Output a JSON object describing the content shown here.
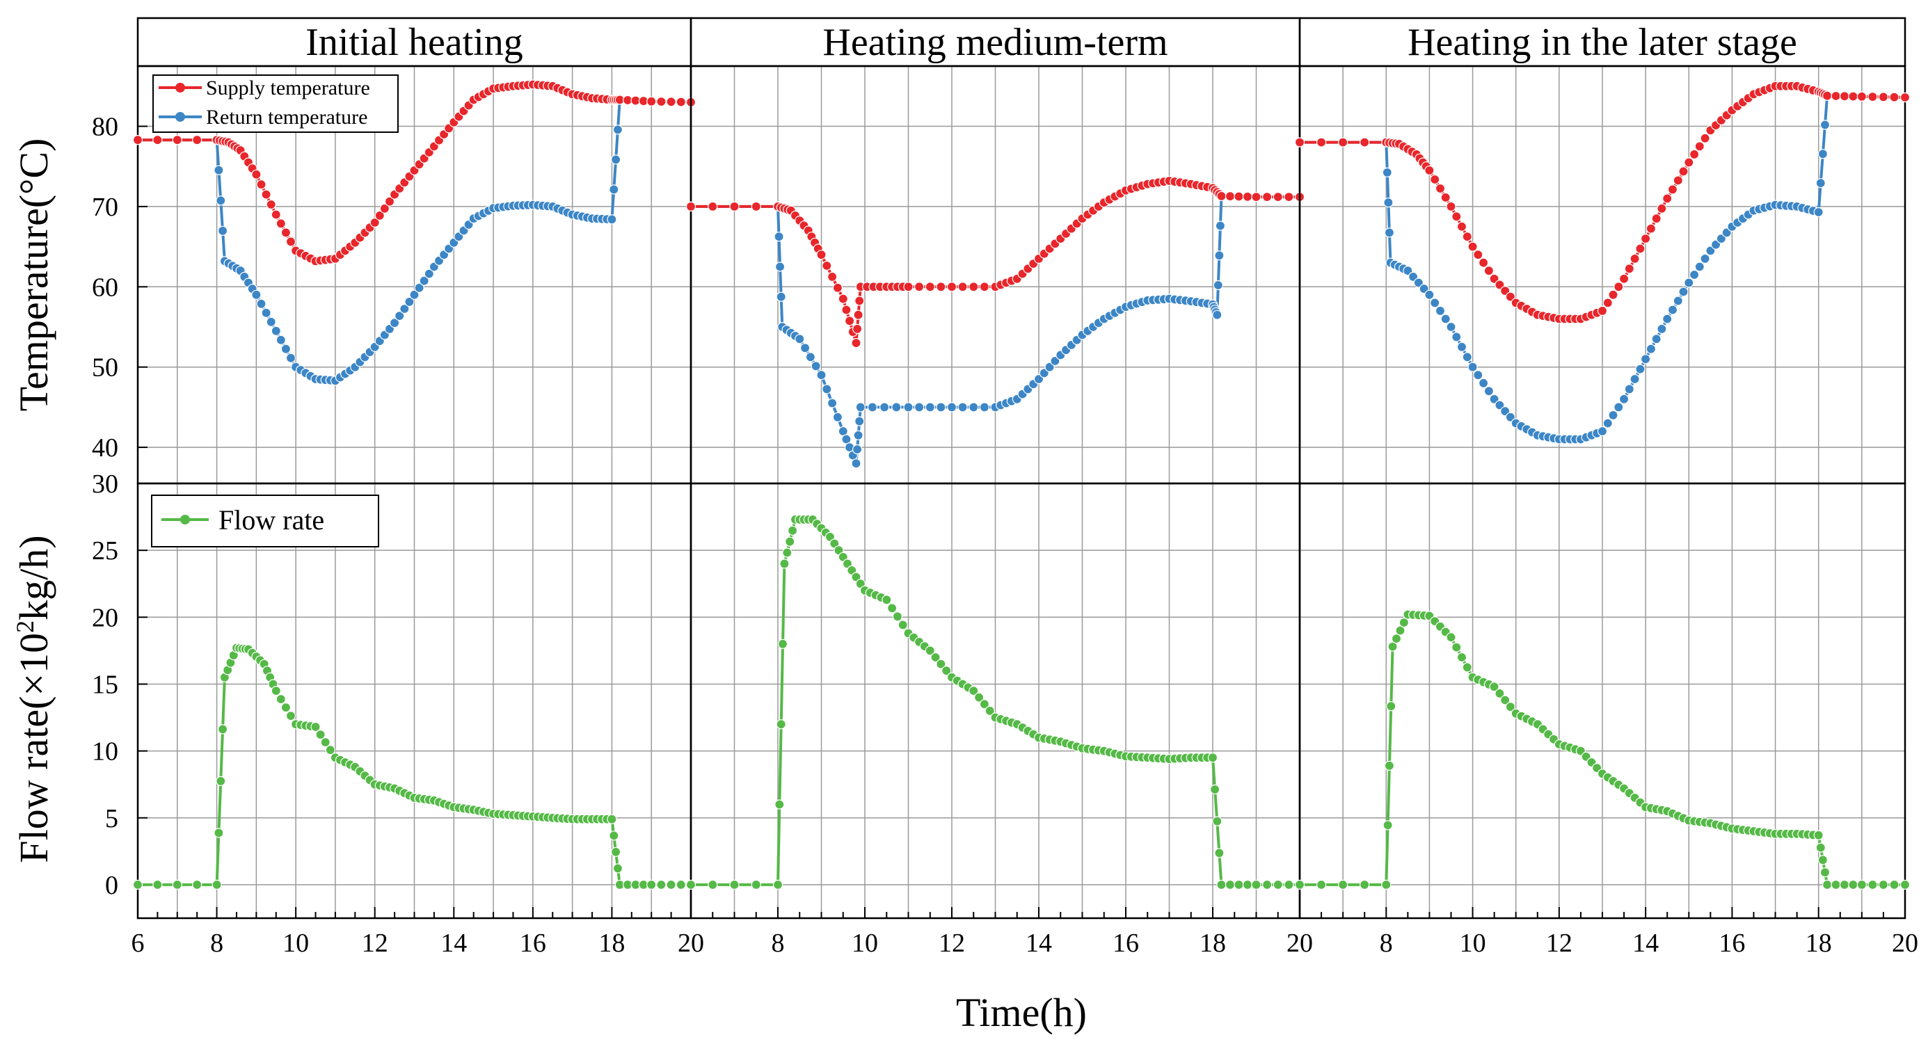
{
  "chart_data": {
    "type": "line",
    "xlabel": "Time(h)",
    "ylabel_top": "Temperature(°C)",
    "ylabel_bottom_prefix": "Flow rate(×10",
    "ylabel_bottom_sup": "2",
    "ylabel_bottom_suffix": "kg/h)",
    "xlim": [
      6,
      20
    ],
    "x_ticks": [
      6,
      8,
      10,
      12,
      14,
      16,
      18,
      20
    ],
    "temp_ylim": [
      35.5,
      87.5
    ],
    "temp_ticks": [
      40,
      50,
      60,
      70,
      80
    ],
    "flow_ylim": [
      -2.5,
      30
    ],
    "flow_ticks": [
      0,
      5,
      10,
      15,
      20,
      25,
      30
    ],
    "legend": {
      "supply": "Supply temperature",
      "return": "Return temperature",
      "flow": "Flow rate"
    },
    "colors": {
      "supply": "#e8262b",
      "return": "#3c86c6",
      "flow": "#55b947"
    },
    "panels": [
      {
        "title": "Initial heating",
        "supply": [
          [
            6,
            78.3
          ],
          [
            8,
            78.3
          ],
          [
            8.3,
            78
          ],
          [
            8.6,
            77
          ],
          [
            9,
            74
          ],
          [
            9.5,
            69
          ],
          [
            10,
            64.5
          ],
          [
            10.5,
            63.2
          ],
          [
            11,
            63.5
          ],
          [
            11.5,
            65.5
          ],
          [
            12,
            68
          ],
          [
            12.5,
            71.5
          ],
          [
            13,
            74.5
          ],
          [
            13.5,
            77.5
          ],
          [
            14,
            80.5
          ],
          [
            14.5,
            83.3
          ],
          [
            15,
            84.7
          ],
          [
            15.5,
            85
          ],
          [
            16,
            85.2
          ],
          [
            16.5,
            85
          ],
          [
            17,
            84
          ],
          [
            17.5,
            83.5
          ],
          [
            18,
            83.3
          ],
          [
            18.2,
            83.3
          ],
          [
            19,
            83.1
          ],
          [
            20,
            83
          ]
        ],
        "return": [
          [
            6,
            78.3
          ],
          [
            8,
            78.3
          ],
          [
            8.2,
            63.2
          ],
          [
            8.6,
            62
          ],
          [
            9,
            59
          ],
          [
            9.5,
            54.5
          ],
          [
            10,
            50
          ],
          [
            10.5,
            48.5
          ],
          [
            11,
            48.3
          ],
          [
            11.5,
            50
          ],
          [
            12,
            52.5
          ],
          [
            12.5,
            55.5
          ],
          [
            13,
            59
          ],
          [
            13.5,
            62.5
          ],
          [
            14,
            65.5
          ],
          [
            14.5,
            68.5
          ],
          [
            15,
            69.8
          ],
          [
            15.5,
            70.1
          ],
          [
            16,
            70.2
          ],
          [
            16.5,
            70
          ],
          [
            17,
            69
          ],
          [
            17.5,
            68.5
          ],
          [
            18,
            68.4
          ],
          [
            18.2,
            83.3
          ],
          [
            19,
            83.1
          ],
          [
            20,
            83
          ]
        ],
        "flow": [
          [
            6,
            0
          ],
          [
            8,
            0
          ],
          [
            8.2,
            15.5
          ],
          [
            8.5,
            17.7
          ],
          [
            8.8,
            17.6
          ],
          [
            9.2,
            16.5
          ],
          [
            9.5,
            14.5
          ],
          [
            10,
            12
          ],
          [
            10.5,
            11.8
          ],
          [
            11,
            9.5
          ],
          [
            11.5,
            8.8
          ],
          [
            12,
            7.5
          ],
          [
            12.5,
            7.2
          ],
          [
            13,
            6.5
          ],
          [
            13.5,
            6.3
          ],
          [
            14,
            5.8
          ],
          [
            14.5,
            5.6
          ],
          [
            15,
            5.3
          ],
          [
            15.5,
            5.2
          ],
          [
            16,
            5.1
          ],
          [
            16.5,
            5
          ],
          [
            17,
            4.9
          ],
          [
            17.5,
            4.9
          ],
          [
            18,
            4.9
          ],
          [
            18.2,
            0
          ],
          [
            19,
            0
          ],
          [
            20,
            0
          ]
        ]
      },
      {
        "title": "Heating medium-term",
        "supply": [
          [
            6,
            70
          ],
          [
            8,
            70
          ],
          [
            8.3,
            69.5
          ],
          [
            8.7,
            67
          ],
          [
            9,
            64
          ],
          [
            9.5,
            58.5
          ],
          [
            9.8,
            53
          ],
          [
            9.9,
            60
          ],
          [
            10.5,
            60
          ],
          [
            11,
            60
          ],
          [
            12,
            60
          ],
          [
            13,
            60
          ],
          [
            13.5,
            61
          ],
          [
            14,
            63.5
          ],
          [
            14.5,
            66
          ],
          [
            15,
            68.5
          ],
          [
            15.5,
            70.5
          ],
          [
            16,
            72
          ],
          [
            16.5,
            72.8
          ],
          [
            17,
            73.2
          ],
          [
            17.5,
            72.8
          ],
          [
            18,
            72.3
          ],
          [
            18.2,
            71.3
          ],
          [
            19,
            71.2
          ],
          [
            20,
            71.2
          ]
        ],
        "return": [
          [
            6,
            70
          ],
          [
            8,
            70
          ],
          [
            8.1,
            55
          ],
          [
            8.5,
            53.5
          ],
          [
            9,
            49
          ],
          [
            9.5,
            42
          ],
          [
            9.8,
            38
          ],
          [
            9.9,
            45
          ],
          [
            11,
            45
          ],
          [
            12,
            45
          ],
          [
            13,
            45
          ],
          [
            13.5,
            46
          ],
          [
            14,
            48.5
          ],
          [
            14.5,
            51.5
          ],
          [
            15,
            54
          ],
          [
            15.5,
            56
          ],
          [
            16,
            57.5
          ],
          [
            16.5,
            58.3
          ],
          [
            17,
            58.5
          ],
          [
            17.5,
            58.2
          ],
          [
            18,
            57.8
          ],
          [
            18.1,
            56.5
          ],
          [
            18.2,
            71.3
          ],
          [
            19,
            71.2
          ],
          [
            20,
            71.2
          ]
        ],
        "flow": [
          [
            6,
            0
          ],
          [
            8,
            0
          ],
          [
            8.15,
            24
          ],
          [
            8.4,
            27.3
          ],
          [
            8.8,
            27.3
          ],
          [
            9.2,
            26
          ],
          [
            9.6,
            24
          ],
          [
            10,
            22
          ],
          [
            10.5,
            21.3
          ],
          [
            11,
            18.8
          ],
          [
            11.5,
            17.5
          ],
          [
            12,
            15.5
          ],
          [
            12.5,
            14.5
          ],
          [
            13,
            12.5
          ],
          [
            13.5,
            12
          ],
          [
            14,
            11
          ],
          [
            14.5,
            10.7
          ],
          [
            15,
            10.2
          ],
          [
            15.5,
            10
          ],
          [
            16,
            9.6
          ],
          [
            16.5,
            9.5
          ],
          [
            17,
            9.4
          ],
          [
            17.5,
            9.5
          ],
          [
            18,
            9.5
          ],
          [
            18.2,
            0
          ],
          [
            19,
            0
          ],
          [
            20,
            0
          ]
        ]
      },
      {
        "title": "Heating in the later stage",
        "supply": [
          [
            6,
            78
          ],
          [
            8,
            78
          ],
          [
            8.3,
            77.8
          ],
          [
            8.7,
            76.5
          ],
          [
            9,
            74.5
          ],
          [
            9.5,
            70
          ],
          [
            10,
            65
          ],
          [
            10.5,
            61
          ],
          [
            11,
            58
          ],
          [
            11.5,
            56.5
          ],
          [
            12,
            56
          ],
          [
            12.5,
            56
          ],
          [
            13,
            57
          ],
          [
            13.5,
            61
          ],
          [
            14,
            66
          ],
          [
            14.5,
            71
          ],
          [
            15,
            75.5
          ],
          [
            15.5,
            79.5
          ],
          [
            16,
            82
          ],
          [
            16.5,
            84
          ],
          [
            17,
            85
          ],
          [
            17.5,
            85
          ],
          [
            18,
            84.3
          ],
          [
            18.2,
            83.8
          ],
          [
            19,
            83.7
          ],
          [
            20,
            83.6
          ]
        ],
        "return": [
          [
            6,
            78
          ],
          [
            8,
            78
          ],
          [
            8.1,
            63
          ],
          [
            8.5,
            62
          ],
          [
            9,
            59
          ],
          [
            9.5,
            55
          ],
          [
            10,
            50
          ],
          [
            10.5,
            46
          ],
          [
            11,
            43
          ],
          [
            11.5,
            41.5
          ],
          [
            12,
            41
          ],
          [
            12.5,
            41
          ],
          [
            13,
            42
          ],
          [
            13.5,
            46
          ],
          [
            14,
            51
          ],
          [
            14.5,
            56
          ],
          [
            15,
            60.5
          ],
          [
            15.5,
            64.5
          ],
          [
            16,
            67.5
          ],
          [
            16.5,
            69.5
          ],
          [
            17,
            70.2
          ],
          [
            17.5,
            70
          ],
          [
            18,
            69.3
          ],
          [
            18.2,
            83.8
          ],
          [
            19,
            83.7
          ],
          [
            20,
            83.6
          ]
        ],
        "flow": [
          [
            6,
            0
          ],
          [
            8,
            0
          ],
          [
            8.15,
            17.8
          ],
          [
            8.5,
            20.2
          ],
          [
            9,
            20.1
          ],
          [
            9.5,
            18.5
          ],
          [
            10,
            15.5
          ],
          [
            10.5,
            14.8
          ],
          [
            11,
            12.8
          ],
          [
            11.5,
            12
          ],
          [
            12,
            10.5
          ],
          [
            12.5,
            10
          ],
          [
            13,
            8.3
          ],
          [
            13.5,
            7.2
          ],
          [
            14,
            5.8
          ],
          [
            14.5,
            5.5
          ],
          [
            15,
            4.8
          ],
          [
            15.5,
            4.6
          ],
          [
            16,
            4.2
          ],
          [
            16.5,
            4
          ],
          [
            17,
            3.8
          ],
          [
            17.5,
            3.8
          ],
          [
            18,
            3.7
          ],
          [
            18.2,
            0
          ],
          [
            19,
            0
          ],
          [
            20,
            0
          ]
        ]
      }
    ]
  }
}
